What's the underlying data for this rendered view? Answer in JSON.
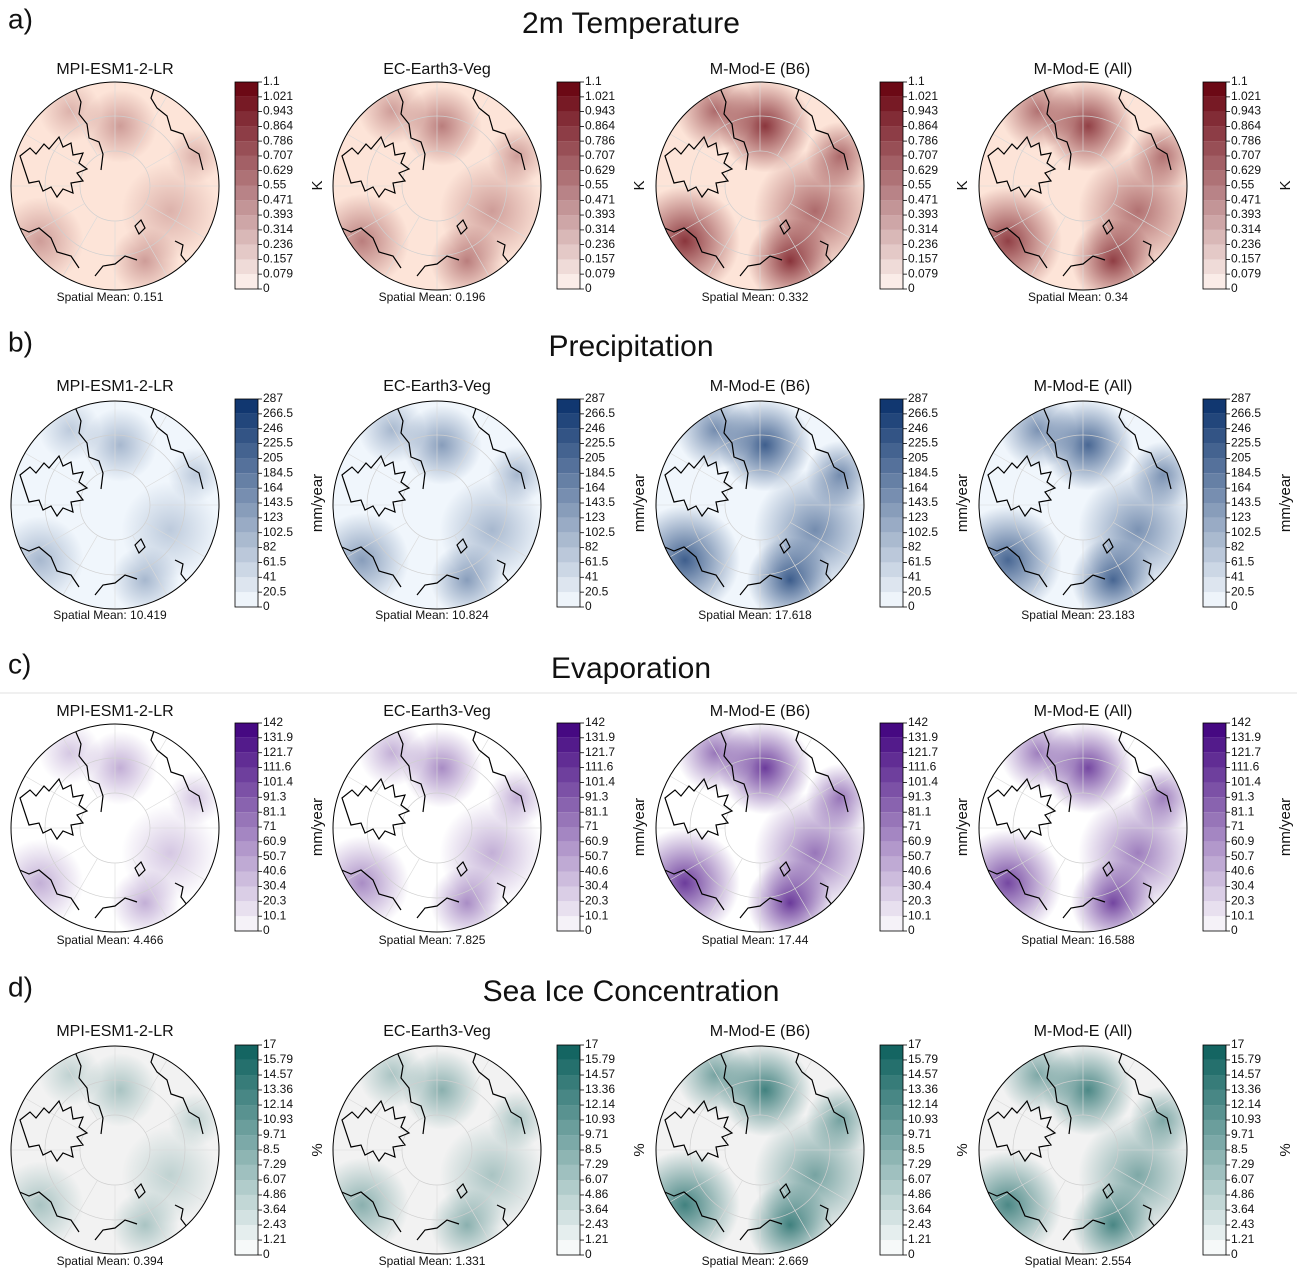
{
  "mean_label": "Spatial Mean:",
  "models": [
    "MPI-ESM1-2-LR",
    "EC-Earth3-Veg",
    "M-Mod-E (B6)",
    "M-Mod-E (All)"
  ],
  "panels": [
    {
      "label": "a)",
      "title": "2m Temperature",
      "unit": "K",
      "color": "#67000d",
      "light": "#fff5f0",
      "background": "#fde4d8",
      "ticks": [
        0,
        0.079,
        0.157,
        0.236,
        0.314,
        0.393,
        0.471,
        0.55,
        0.629,
        0.707,
        0.786,
        0.864,
        0.943,
        1.021,
        1.1
      ],
      "means": [
        0.151,
        0.196,
        0.332,
        0.34
      ]
    },
    {
      "label": "b)",
      "title": "Precipitation",
      "unit": "mm/year",
      "color": "#08306b",
      "light": "#f7fbff",
      "background": "#f0f6fc",
      "ticks": [
        0,
        20.5,
        41,
        61.5,
        82,
        102.5,
        123,
        143.5,
        164,
        184.5,
        205,
        225.5,
        246,
        266.5,
        287
      ],
      "means": [
        10.419,
        10.824,
        17.618,
        23.183
      ]
    },
    {
      "label": "c)",
      "title": "Evaporation",
      "unit": "mm/year",
      "color": "#3f007d",
      "light": "#fcfbfd",
      "background": "#ffffff",
      "ticks": [
        0,
        10.1,
        20.3,
        30.4,
        40.6,
        50.7,
        60.9,
        71,
        81.1,
        91.3,
        101.4,
        111.6,
        121.7,
        131.9,
        142
      ],
      "means": [
        4.466,
        7.825,
        17.44,
        16.588
      ]
    },
    {
      "label": "d)",
      "title": "Sea Ice Concentration",
      "unit": "%",
      "color": "#0b5f5c",
      "light": "#ffffff",
      "background": "#f2f2f2",
      "ticks": [
        0,
        1.21,
        2.43,
        3.64,
        4.86,
        6.07,
        7.29,
        8.5,
        9.71,
        10.93,
        12.14,
        13.36,
        14.57,
        15.79,
        17
      ],
      "means": [
        0.394,
        1.331,
        2.669,
        2.554
      ]
    }
  ]
}
